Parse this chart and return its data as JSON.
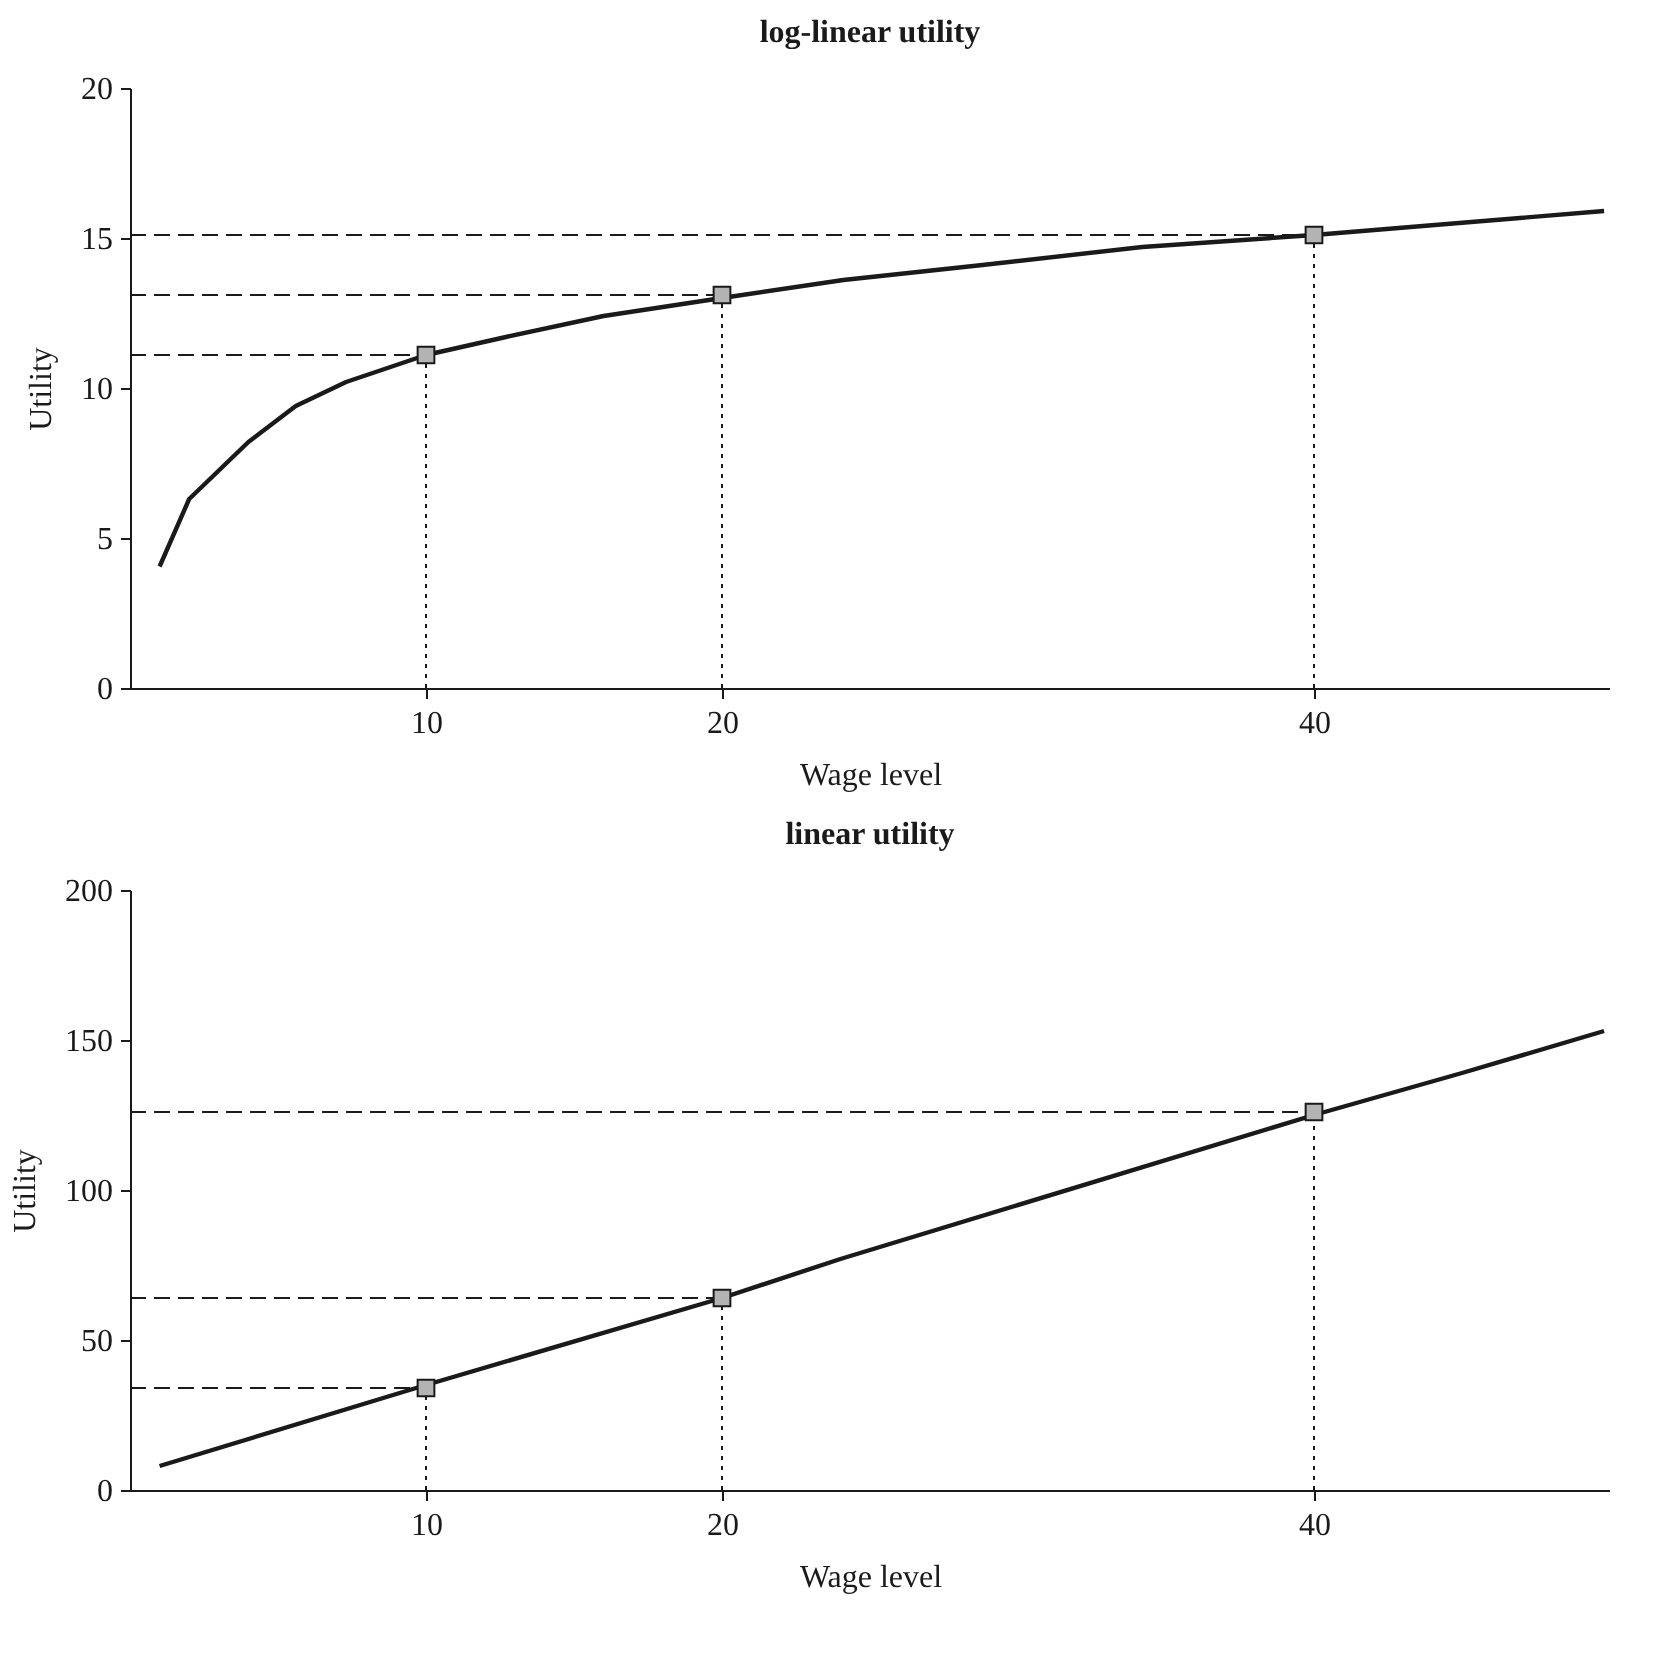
{
  "chart_data": [
    {
      "type": "line",
      "title": "log-linear utility",
      "xlabel": "Wage level",
      "ylabel": "Utility",
      "xlim": [
        0,
        50
      ],
      "xticks": [
        10,
        20,
        40
      ],
      "ylim": [
        0,
        20
      ],
      "yticks": [
        0,
        5,
        10,
        15,
        20
      ],
      "grid": false,
      "series": [
        {
          "color": "#1a1a1a",
          "line_style": "solid",
          "marker": "none",
          "x": [
            1,
            2,
            4,
            5.6,
            7.3,
            10,
            12.7,
            16,
            20,
            24.1,
            28.8,
            34.2,
            40,
            44.9,
            49.8
          ],
          "values": [
            4.05,
            6.3,
            8.2,
            9.4,
            10.2,
            11.1,
            11.7,
            12.4,
            13.0,
            13.6,
            14.1,
            14.7,
            15.1,
            15.5,
            15.9
          ]
        },
        {
          "type": "scatter",
          "color": "#b3b3b3",
          "marker": "square",
          "x": [
            10,
            20,
            40
          ],
          "values": [
            11.1,
            13.1,
            15.1
          ]
        }
      ],
      "ref_lines": [
        {
          "axis": "y",
          "value": 11.1,
          "line_style": "dashed",
          "color": "#1a1a1a"
        },
        {
          "axis": "y",
          "value": 13.1,
          "line_style": "dashed",
          "color": "#1a1a1a"
        },
        {
          "axis": "y",
          "value": 15.1,
          "line_style": "dashed",
          "color": "#1a1a1a"
        },
        {
          "axis": "x",
          "value": 10,
          "line_style": "dotted",
          "color": "#1a1a1a"
        },
        {
          "axis": "x",
          "value": 20,
          "line_style": "dotted",
          "color": "#1a1a1a"
        },
        {
          "axis": "x",
          "value": 40,
          "line_style": "dotted",
          "color": "#1a1a1a"
        }
      ]
    },
    {
      "type": "line",
      "title": "linear utility",
      "xlabel": "Wage level",
      "ylabel": "Utility",
      "xlim": [
        0,
        50
      ],
      "xticks": [
        10,
        20,
        40
      ],
      "ylim": [
        0,
        200
      ],
      "yticks": [
        0,
        50,
        100,
        150,
        200
      ],
      "grid": false,
      "series": [
        {
          "color": "#1a1a1a",
          "line_style": "solid",
          "marker": "none",
          "x": [
            1,
            10,
            20,
            24,
            40,
            45,
            49.8
          ],
          "values": [
            8,
            35,
            64,
            77,
            125,
            139,
            153
          ]
        },
        {
          "type": "scatter",
          "color": "#b3b3b3",
          "marker": "square",
          "x": [
            10,
            20,
            40
          ],
          "values": [
            34,
            64,
            126
          ]
        }
      ],
      "ref_lines": [
        {
          "axis": "y",
          "value": 34,
          "line_style": "dashed",
          "color": "#1a1a1a"
        },
        {
          "axis": "y",
          "value": 64,
          "line_style": "dashed",
          "color": "#1a1a1a"
        },
        {
          "axis": "y",
          "value": 126,
          "line_style": "dashed",
          "color": "#1a1a1a"
        },
        {
          "axis": "x",
          "value": 10,
          "line_style": "dotted",
          "color": "#1a1a1a"
        },
        {
          "axis": "x",
          "value": 20,
          "line_style": "dotted",
          "color": "#1a1a1a"
        },
        {
          "axis": "x",
          "value": 40,
          "line_style": "dotted",
          "color": "#1a1a1a"
        }
      ]
    }
  ]
}
